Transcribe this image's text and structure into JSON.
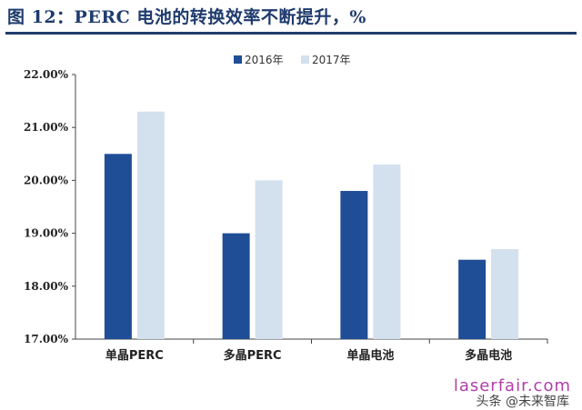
{
  "title": "图 12：PERC 电池的转换效率不断提升，%",
  "watermark_site": "laserfair.com",
  "watermark_author": "头条 @未来智库",
  "chart_data": {
    "type": "bar",
    "categories": [
      "单晶PERC",
      "多晶PERC",
      "单晶电池",
      "多晶电池"
    ],
    "series": [
      {
        "name": "2016年",
        "color": "#1f4e96",
        "values": [
          20.5,
          19.0,
          19.8,
          18.5
        ]
      },
      {
        "name": "2017年",
        "color": "#d3e0ee",
        "values": [
          21.3,
          20.0,
          20.3,
          18.7
        ]
      }
    ],
    "ylim": [
      17,
      22
    ],
    "yticks": [
      "17.00%",
      "18.00%",
      "19.00%",
      "20.00%",
      "21.00%",
      "22.00%"
    ],
    "legend_position": "top-center",
    "grid": false
  }
}
